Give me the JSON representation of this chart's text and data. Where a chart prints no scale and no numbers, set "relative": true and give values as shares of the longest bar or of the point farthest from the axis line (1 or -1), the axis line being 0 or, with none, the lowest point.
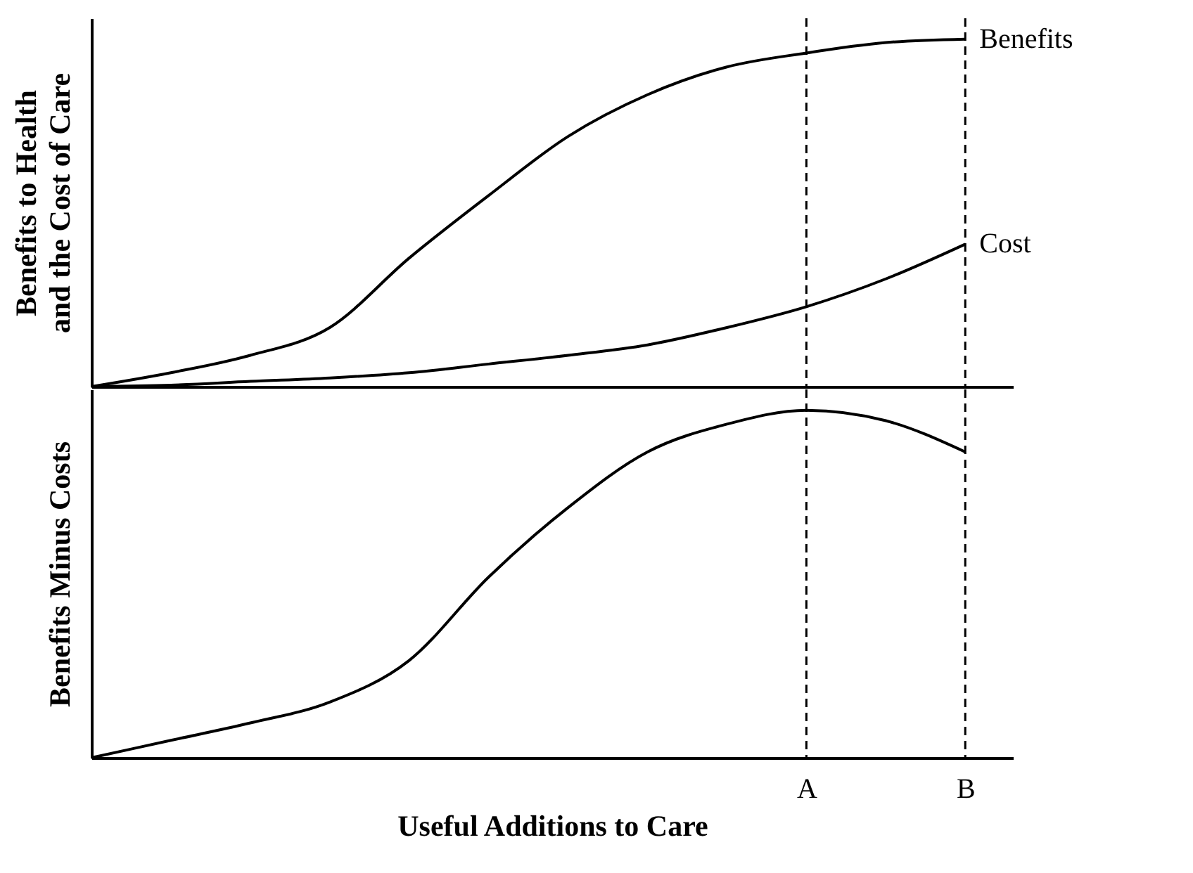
{
  "chart_data": [
    {
      "type": "line",
      "relative": true,
      "ylabel": "Benefits to Health and the Cost of Care",
      "categories": [
        null,
        null,
        null,
        null,
        null,
        null,
        null,
        null,
        null,
        "A",
        null,
        "B"
      ],
      "tick_labels": false,
      "line_style": "solid",
      "series": [
        {
          "name": "Benefits",
          "color": "#000000",
          "values": [
            0,
            0.04,
            0.09,
            0.17,
            0.37,
            0.55,
            0.72,
            0.84,
            0.92,
            0.96,
            0.99,
            1.0
          ]
        },
        {
          "name": "Cost",
          "color": "#000000",
          "values": [
            0,
            0.004,
            0.015,
            0.025,
            0.04,
            0.065,
            0.09,
            0.12,
            0.17,
            0.23,
            0.31,
            0.41
          ]
        }
      ],
      "ref_lines": [
        {
          "axis": "x",
          "value": "A",
          "line_style": "dashed",
          "color": "#000000"
        },
        {
          "axis": "x",
          "value": "B",
          "line_style": "dashed",
          "color": "#000000"
        }
      ]
    },
    {
      "type": "line",
      "relative": true,
      "ylabel": "Benefits Minus Costs",
      "xlabel": "Useful Additions to Care",
      "categories": [
        null,
        null,
        null,
        null,
        null,
        null,
        null,
        null,
        null,
        "A",
        null,
        "B"
      ],
      "tick_labels": "x",
      "line_style": "solid",
      "series": [
        {
          "color": "#000000",
          "values": [
            0,
            0.05,
            0.1,
            0.16,
            0.28,
            0.52,
            0.72,
            0.88,
            0.96,
            1.0,
            0.97,
            0.88
          ]
        }
      ],
      "ref_lines": [
        {
          "axis": "x",
          "value": "A",
          "line_style": "dashed",
          "color": "#000000"
        },
        {
          "axis": "x",
          "value": "B",
          "line_style": "dashed",
          "color": "#000000"
        }
      ]
    }
  ]
}
